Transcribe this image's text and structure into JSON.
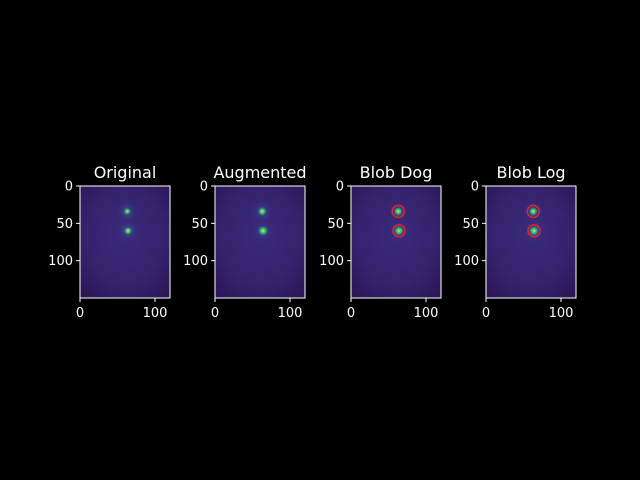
{
  "figure": {
    "background": "#000000"
  },
  "chart_data": [
    {
      "type": "heatmap",
      "title": "Original",
      "xlim": [
        0,
        120
      ],
      "ylim": [
        150,
        0
      ],
      "xticks": [
        "0",
        "100"
      ],
      "yticks": [
        "0",
        "50",
        "100"
      ],
      "colormap": "viridis",
      "blobs": [
        {
          "x": 63,
          "y": 34,
          "intensity": 0.5
        },
        {
          "x": 64,
          "y": 60,
          "intensity": 0.65
        }
      ],
      "circles": []
    },
    {
      "type": "heatmap",
      "title": "Augmented",
      "xlim": [
        0,
        120
      ],
      "ylim": [
        150,
        0
      ],
      "xticks": [
        "0",
        "100"
      ],
      "yticks": [
        "0",
        "50",
        "100"
      ],
      "colormap": "viridis",
      "blobs": [
        {
          "x": 63,
          "y": 34,
          "intensity": 0.75
        },
        {
          "x": 64,
          "y": 60,
          "intensity": 0.9
        }
      ],
      "circles": []
    },
    {
      "type": "heatmap",
      "title": "Blob Dog",
      "xlim": [
        0,
        120
      ],
      "ylim": [
        150,
        0
      ],
      "xticks": [
        "0",
        "100"
      ],
      "yticks": [
        "0",
        "50",
        "100"
      ],
      "colormap": "viridis",
      "blobs": [
        {
          "x": 63,
          "y": 34,
          "intensity": 0.75
        },
        {
          "x": 64,
          "y": 60,
          "intensity": 0.9
        }
      ],
      "circles": [
        {
          "x": 63,
          "y": 34,
          "r": 8
        },
        {
          "x": 64,
          "y": 60,
          "r": 8
        }
      ],
      "circle_color": "#e8202a"
    },
    {
      "type": "heatmap",
      "title": "Blob Log",
      "xlim": [
        0,
        120
      ],
      "ylim": [
        150,
        0
      ],
      "xticks": [
        "0",
        "100"
      ],
      "yticks": [
        "0",
        "50",
        "100"
      ],
      "colormap": "viridis",
      "blobs": [
        {
          "x": 63,
          "y": 34,
          "intensity": 0.75
        },
        {
          "x": 64,
          "y": 60,
          "intensity": 0.9
        }
      ],
      "circles": [
        {
          "x": 63,
          "y": 34,
          "r": 8
        },
        {
          "x": 64,
          "y": 60,
          "r": 8
        }
      ],
      "circle_color": "#e8202a"
    }
  ]
}
